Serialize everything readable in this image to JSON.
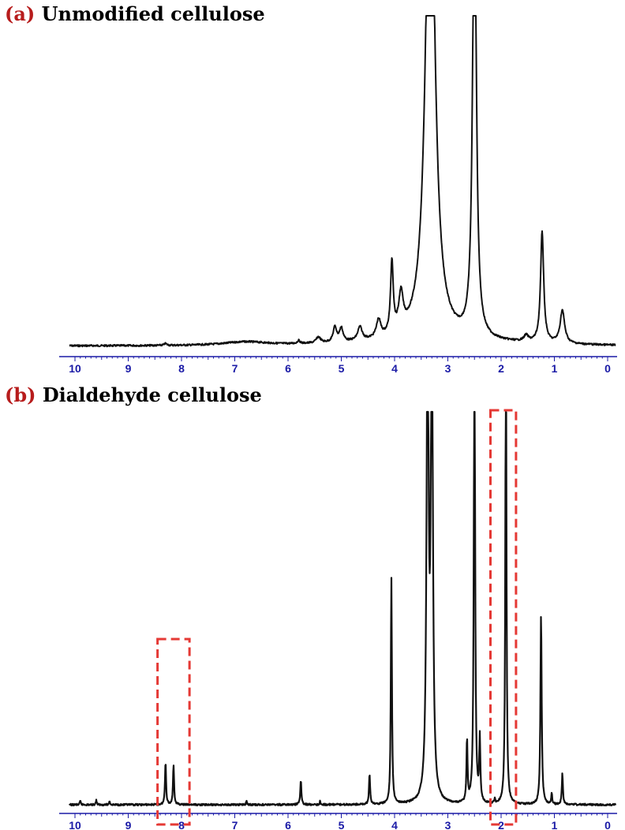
{
  "panels": [
    {
      "tag": "(a)",
      "title": "Unmodified cellulose"
    },
    {
      "tag": "(b)",
      "title": "Dialdehyde cellulose"
    }
  ],
  "colors": {
    "tag": "#b71c1c",
    "trace": "#111111",
    "axis": "#1a1aa6",
    "highlight": "#e53935"
  },
  "chart_data": [
    {
      "type": "line",
      "title": "(a) Unmodified cellulose",
      "xlabel": "",
      "ylabel": "",
      "xlim": [
        10.1,
        -0.1
      ],
      "x_reversed": true,
      "x_ticks": [
        10,
        9,
        8,
        7,
        6,
        5,
        4,
        3,
        2,
        1,
        0
      ],
      "ylim": [
        0,
        1
      ],
      "grid": false,
      "peaks": [
        {
          "ppm": 8.3,
          "height": 0.006,
          "width": 0.03
        },
        {
          "ppm": 6.8,
          "height": 0.012,
          "width": 0.5
        },
        {
          "ppm": 5.8,
          "height": 0.01,
          "width": 0.03
        },
        {
          "ppm": 5.43,
          "height": 0.02,
          "width": 0.05
        },
        {
          "ppm": 5.12,
          "height": 0.05,
          "width": 0.04
        },
        {
          "ppm": 5.0,
          "height": 0.045,
          "width": 0.04
        },
        {
          "ppm": 4.65,
          "height": 0.045,
          "width": 0.05
        },
        {
          "ppm": 4.3,
          "height": 0.06,
          "width": 0.05
        },
        {
          "ppm": 4.05,
          "height": 0.24,
          "width": 0.03
        },
        {
          "ppm": 3.88,
          "height": 0.12,
          "width": 0.05
        },
        {
          "ppm": 3.33,
          "height": 1.8,
          "width": 0.1
        },
        {
          "ppm": 2.5,
          "height": 1.6,
          "width": 0.04
        },
        {
          "ppm": 1.53,
          "height": 0.02,
          "width": 0.05
        },
        {
          "ppm": 1.23,
          "height": 0.37,
          "width": 0.035
        },
        {
          "ppm": 0.85,
          "height": 0.11,
          "width": 0.05
        }
      ]
    },
    {
      "type": "line",
      "title": "(b) Dialdehyde cellulose",
      "xlabel": "",
      "ylabel": "",
      "xlim": [
        10.1,
        -0.1
      ],
      "x_reversed": true,
      "x_ticks": [
        10,
        9,
        8,
        7,
        6,
        5,
        4,
        3,
        2,
        1,
        0
      ],
      "ylim": [
        0,
        1
      ],
      "grid": false,
      "peaks": [
        {
          "ppm": 9.9,
          "height": 0.012,
          "width": 0.01
        },
        {
          "ppm": 9.6,
          "height": 0.015,
          "width": 0.01
        },
        {
          "ppm": 9.35,
          "height": 0.012,
          "width": 0.01
        },
        {
          "ppm": 8.3,
          "height": 0.14,
          "width": 0.012
        },
        {
          "ppm": 8.15,
          "height": 0.13,
          "width": 0.012
        },
        {
          "ppm": 6.78,
          "height": 0.012,
          "width": 0.01
        },
        {
          "ppm": 5.76,
          "height": 0.08,
          "width": 0.012
        },
        {
          "ppm": 5.4,
          "height": 0.01,
          "width": 0.01
        },
        {
          "ppm": 4.47,
          "height": 0.1,
          "width": 0.012
        },
        {
          "ppm": 4.06,
          "height": 0.73,
          "width": 0.012
        },
        {
          "ppm": 3.38,
          "height": 1.6,
          "width": 0.022
        },
        {
          "ppm": 3.3,
          "height": 1.6,
          "width": 0.022
        },
        {
          "ppm": 2.64,
          "height": 0.2,
          "width": 0.012
        },
        {
          "ppm": 2.5,
          "height": 1.6,
          "width": 0.014
        },
        {
          "ppm": 2.4,
          "height": 0.2,
          "width": 0.012
        },
        {
          "ppm": 2.12,
          "height": 0.012,
          "width": 0.01
        },
        {
          "ppm": 1.91,
          "height": 1.6,
          "width": 0.012
        },
        {
          "ppm": 1.25,
          "height": 0.61,
          "width": 0.014
        },
        {
          "ppm": 1.05,
          "height": 0.035,
          "width": 0.01
        },
        {
          "ppm": 0.85,
          "height": 0.1,
          "width": 0.012
        }
      ],
      "highlight_regions": [
        {
          "ppm_from": 8.45,
          "ppm_to": 7.85
        },
        {
          "ppm_from": 2.2,
          "ppm_to": 1.72
        }
      ]
    }
  ]
}
